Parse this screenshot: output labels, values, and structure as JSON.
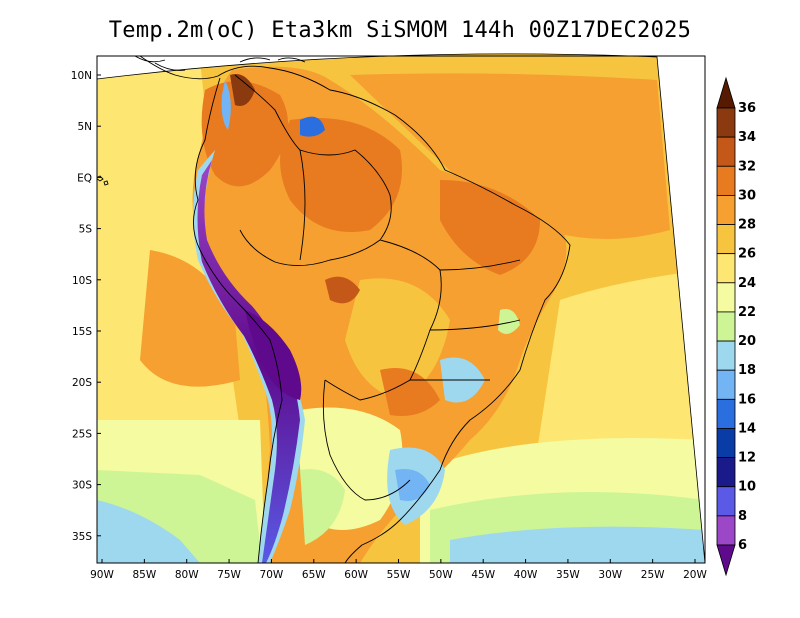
{
  "title": "Temp.2m(oC) Eta3km SiSMOM 144h 00Z17DEC2025",
  "chart_data": {
    "type": "heatmap",
    "title": "Temp.2m(oC) Eta3km SiSMOM 144h 00Z17DEC2025",
    "variable": "Temp.2m(oC)",
    "model": "Eta3km SiSMOM",
    "forecast_hour": "144h",
    "valid_time": "00Z17DEC2025",
    "lat_ticks": [
      "10N",
      "5N",
      "EQ",
      "5S",
      "10S",
      "15S",
      "20S",
      "25S",
      "30S",
      "35S"
    ],
    "lon_ticks": [
      "90W",
      "85W",
      "80W",
      "75W",
      "70W",
      "65W",
      "60W",
      "55W",
      "50W",
      "45W",
      "40W",
      "35W",
      "30W",
      "25W",
      "20W"
    ],
    "lat_range": [
      -38,
      12
    ],
    "lon_range": [
      -91,
      -20
    ],
    "colorbar": {
      "labels": [
        "36",
        "34",
        "32",
        "30",
        "28",
        "26",
        "24",
        "22",
        "20",
        "18",
        "16",
        "14",
        "12",
        "10",
        "8",
        "6"
      ],
      "colors": [
        "#551a00",
        "#8b3a10",
        "#c45818",
        "#e87a20",
        "#f5a030",
        "#f7c440",
        "#fde671",
        "#f4fba0",
        "#cdf595",
        "#9ed8ef",
        "#72b4f4",
        "#2a6ee0",
        "#0a3ca8",
        "#1a1a8a",
        "#5a5ae6",
        "#9c46c8",
        "#5f0a8c"
      ]
    }
  }
}
